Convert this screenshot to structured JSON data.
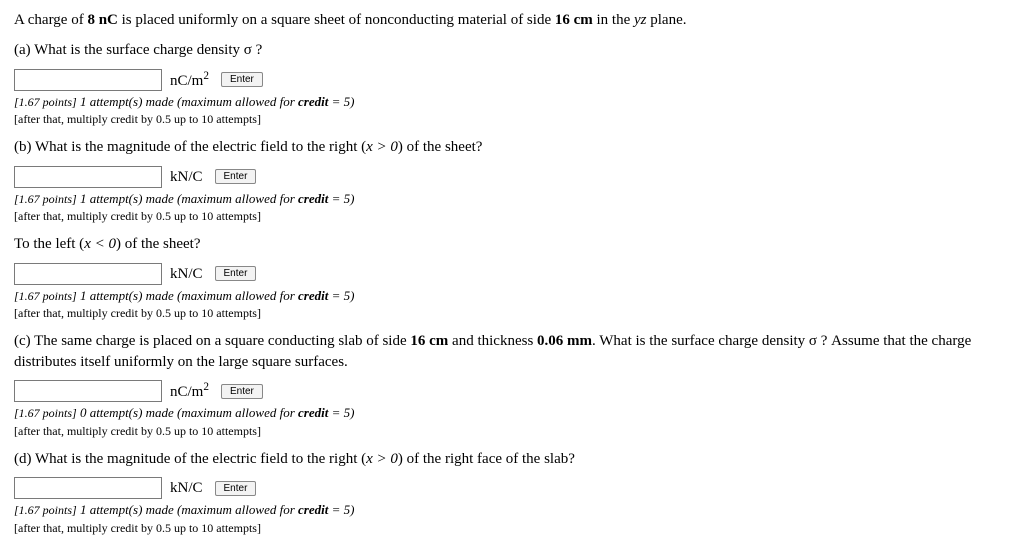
{
  "intro": {
    "pre": "A charge of ",
    "charge": "8 nC",
    "mid": " is placed uniformly on a square sheet of nonconducting material of side ",
    "side": "16 cm",
    "post": " in the ",
    "plane": "yz",
    "end": " plane."
  },
  "parts": {
    "a": {
      "label": "(a) What is the surface charge density σ ?",
      "unit_base": "nC/m",
      "unit_sup": "2",
      "attempts": "1",
      "points": "1.67 points"
    },
    "b": {
      "label_pre": "(b) What is the magnitude of the electric field to the right (",
      "label_ineq": "x > 0",
      "label_post": ") of the sheet?",
      "unit": "kN/C",
      "attempts": "1",
      "points": "1.67 points"
    },
    "b2": {
      "label_pre": "To the left (",
      "label_ineq": "x < 0",
      "label_post": ") of the sheet?",
      "unit": "kN/C",
      "attempts": "1",
      "points": "1.67 points"
    },
    "c": {
      "text_pre": "(c) The same charge is placed on a square conducting slab of side ",
      "side": "16 cm",
      "text_mid": " and thickness ",
      "thick": "0.06 mm",
      "text_post": ". What is the surface charge density σ ? Assume that the charge distributes itself uniformly on the large square surfaces.",
      "unit_base": "nC/m",
      "unit_sup": "2",
      "attempts": "0",
      "points": "1.67 points"
    },
    "d": {
      "label_pre": "(d) What is the magnitude of the electric field to the right (",
      "label_ineq": "x > 0",
      "label_post": ") of the right face of the slab?",
      "unit": "kN/C",
      "attempts": "1",
      "points": "1.67 points"
    }
  },
  "common": {
    "enter": "Enter",
    "att_suffix": " attempt(s) made (maximum allowed for ",
    "credit_word": "credit",
    "credit_eq": " = 5)",
    "note2": "[after that, multiply credit by 0.5 up to 10 attempts]"
  }
}
